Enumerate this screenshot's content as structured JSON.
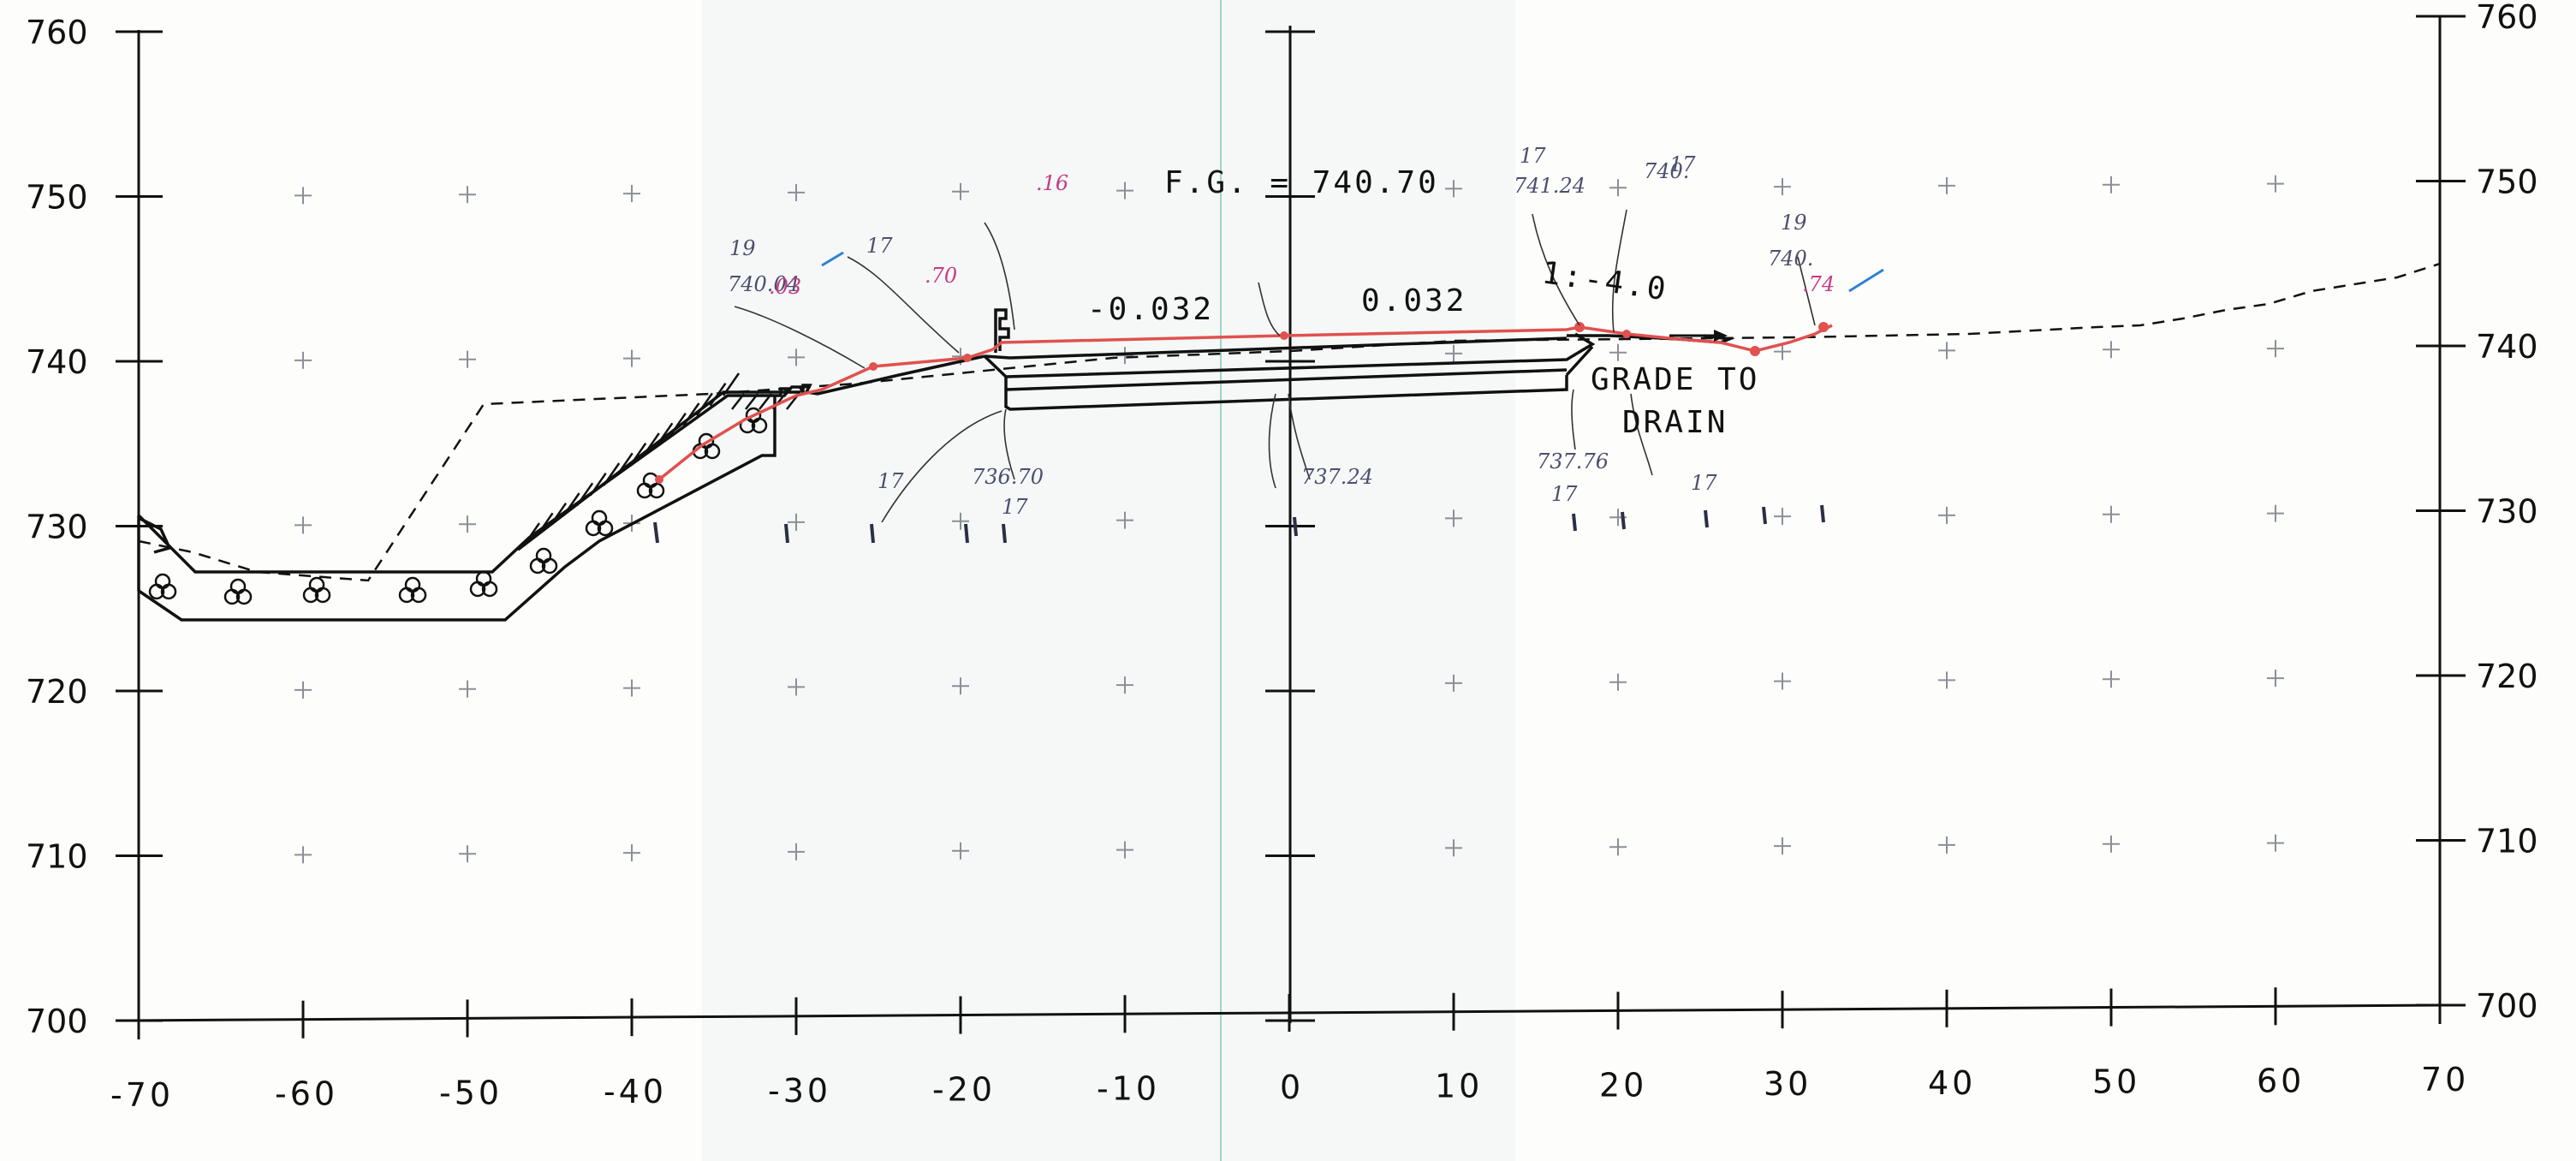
{
  "drawing": {
    "y_axis": {
      "min": 700,
      "max": 760,
      "step": 10,
      "labels": [
        "760",
        "750",
        "740",
        "730",
        "720",
        "710",
        "700"
      ]
    },
    "x_axis": {
      "min": -70,
      "max": 70,
      "step": 10,
      "labels": [
        "-70",
        "-60",
        "-50",
        "-40",
        "-30",
        "-20",
        "-10",
        "0",
        "10",
        "20",
        "30",
        "40",
        "50",
        "60",
        "70"
      ]
    },
    "grid": "crosses",
    "annotations": {
      "finished_grade": "F.G. = 740.70",
      "slope_left": "-0.032",
      "slope_right": "0.032",
      "side_slope": "1:-4.0",
      "grade_line1": "GRADE TO",
      "grade_line2": "DRAIN"
    },
    "handwritten": {
      "n1a": "19",
      "n1b": "740.04",
      "n1c": ".03",
      "n2a": "17",
      "n2b": ".70",
      "n3a": ".16",
      "n4a": "17",
      "n4b": "741.24",
      "n5a": "17",
      "n5b": "740.",
      "n6a": "19",
      "n6b": "740.",
      "n6c": ".74",
      "n7a": "17",
      "n7b": "736.70",
      "n8a": "17",
      "n9a": "737.24",
      "n10a": "737.76",
      "n10b": "17",
      "n11a": "17"
    },
    "colors": {
      "design_ink": "#111111",
      "field_markup": "#e0514f",
      "handwriting": "#c63a86",
      "paper": "#fdfdfb"
    }
  }
}
